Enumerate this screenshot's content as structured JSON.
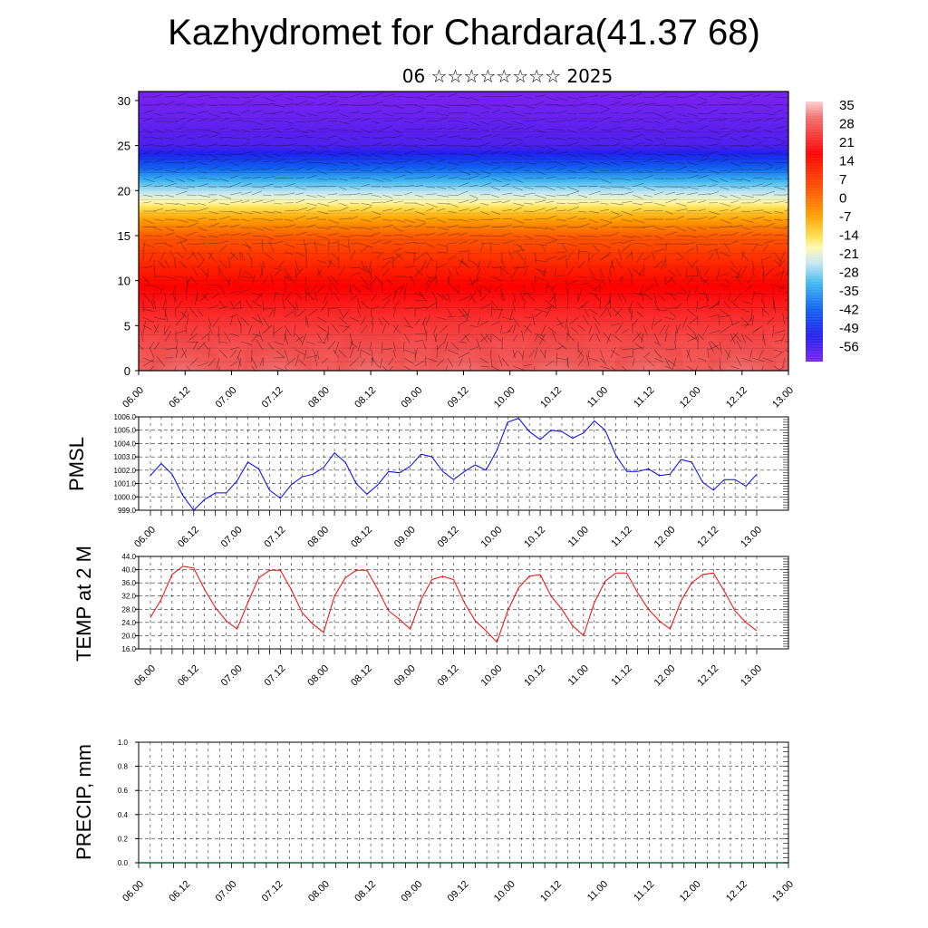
{
  "title": "Kazhydromet for Chardara(41.37 68)",
  "subtitle": "06 ☆☆☆☆☆☆☆☆ 2025",
  "time_ticks": [
    "06.00",
    "06.12",
    "07.00",
    "07.12",
    "08.00",
    "08.12",
    "09.00",
    "09.12",
    "10.00",
    "10.12",
    "11.00",
    "11.12",
    "12.00",
    "12.12",
    "13.00"
  ],
  "chart_data": [
    {
      "type": "heatmap",
      "name": "upper_air_temperature_wind",
      "x_ticks": [
        "06.00",
        "06.12",
        "07.00",
        "07.12",
        "08.00",
        "08.12",
        "09.00",
        "09.12",
        "10.00",
        "10.12",
        "11.00",
        "11.12",
        "12.00",
        "12.12",
        "13.00"
      ],
      "y_ticks": [
        0,
        5,
        10,
        15,
        20,
        25,
        30
      ],
      "ylim": [
        0,
        31
      ],
      "colorbar_labels": [
        35,
        28,
        21,
        14,
        7,
        0,
        -7,
        -14,
        -21,
        -28,
        -35,
        -42,
        -49,
        -56
      ],
      "colorbar_range": [
        -60,
        38
      ],
      "level_temperature_profile": [
        {
          "level": 0,
          "temp": 30
        },
        {
          "level": 3,
          "temp": 28
        },
        {
          "level": 6,
          "temp": 24
        },
        {
          "level": 9,
          "temp": 19
        },
        {
          "level": 12,
          "temp": 12
        },
        {
          "level": 15,
          "temp": 4
        },
        {
          "level": 17,
          "temp": -6
        },
        {
          "level": 19,
          "temp": -18
        },
        {
          "level": 21,
          "temp": -30
        },
        {
          "level": 23,
          "temp": -43
        },
        {
          "level": 25,
          "temp": -55
        },
        {
          "level": 28,
          "temp": -58
        },
        {
          "level": 31,
          "temp": -60
        }
      ],
      "wind_vectors": "yes"
    },
    {
      "type": "line",
      "ylabel": "PMSL",
      "ylim": [
        999.0,
        1006.0
      ],
      "y_ticks": [
        "999.0",
        "1000.0",
        "1001.0",
        "1002.0",
        "1003.0",
        "1004.0",
        "1005.0",
        "1006.0"
      ],
      "x_ticks": [
        "06.00",
        "06.12",
        "07.00",
        "07.12",
        "08.00",
        "08.12",
        "09.00",
        "09.12",
        "10.00",
        "10.12",
        "11.00",
        "11.12",
        "12.00",
        "12.12",
        "13.00"
      ],
      "series": [
        {
          "color": "#0000ff",
          "x": [
            0,
            3,
            6,
            9,
            12,
            15,
            18,
            21,
            24,
            27,
            30,
            33,
            36,
            39,
            42,
            45,
            48,
            51,
            54,
            57,
            60,
            63,
            66,
            69,
            72,
            75,
            78,
            81,
            84,
            87,
            90,
            93,
            96,
            99,
            102,
            105,
            108,
            111,
            114,
            117,
            120,
            123,
            126,
            129,
            132,
            135,
            138,
            141,
            144,
            147,
            150,
            153,
            156,
            159,
            162,
            165,
            168
          ],
          "values": [
            1001.6,
            1002.5,
            1001.7,
            1000.1,
            999.0,
            999.8,
            1000.3,
            1000.3,
            1001.2,
            1002.6,
            1002.1,
            1000.5,
            999.9,
            1000.9,
            1001.5,
            1001.7,
            1002.2,
            1003.3,
            1002.6,
            1001.0,
            1000.2,
            1000.9,
            1001.9,
            1001.8,
            1002.3,
            1003.2,
            1003.0,
            1001.9,
            1001.3,
            1001.9,
            1002.4,
            1002.0,
            1003.5,
            1005.6,
            1005.9,
            1004.9,
            1004.3,
            1005.0,
            1004.9,
            1004.4,
            1004.8,
            1005.7,
            1005.0,
            1003.1,
            1001.9,
            1001.9,
            1002.1,
            1001.6,
            1001.7,
            1002.8,
            1002.6,
            1001.1,
            1000.5,
            1001.3,
            1001.3,
            1000.8,
            1001.7
          ]
        }
      ]
    },
    {
      "type": "line",
      "ylabel": "TEMP at 2 M",
      "ylim": [
        16.0,
        44.0
      ],
      "y_ticks": [
        "16.0",
        "20.0",
        "24.0",
        "28.0",
        "32.0",
        "36.0",
        "40.0",
        "44.0"
      ],
      "x_ticks": [
        "06.00",
        "06.12",
        "07.00",
        "07.12",
        "08.00",
        "08.12",
        "09.00",
        "09.12",
        "10.00",
        "10.12",
        "11.00",
        "11.12",
        "12.00",
        "12.12",
        "13.00"
      ],
      "series": [
        {
          "color": "#ff0000",
          "x": [
            0,
            3,
            6,
            9,
            12,
            15,
            18,
            21,
            24,
            27,
            30,
            33,
            36,
            39,
            42,
            45,
            48,
            51,
            54,
            57,
            60,
            63,
            66,
            69,
            72,
            75,
            78,
            81,
            84,
            87,
            90,
            93,
            96,
            99,
            102,
            105,
            108,
            111,
            114,
            117,
            120,
            123,
            126,
            129,
            132,
            135,
            138,
            141,
            144,
            147,
            150,
            153,
            156,
            159,
            162,
            165,
            168
          ],
          "values": [
            25.5,
            31.0,
            38.5,
            41.0,
            40.5,
            34.0,
            28.5,
            24.5,
            22.0,
            30.0,
            37.5,
            39.8,
            39.8,
            34.0,
            27.0,
            23.5,
            21.0,
            32.0,
            37.5,
            39.8,
            39.8,
            34.0,
            27.5,
            25.0,
            22.0,
            31.0,
            37.0,
            38.0,
            37.0,
            30.0,
            24.5,
            21.5,
            18.0,
            27.5,
            34.5,
            38.0,
            38.5,
            32.0,
            28.0,
            23.0,
            20.0,
            30.0,
            36.5,
            39.0,
            39.0,
            33.0,
            28.0,
            24.5,
            22.0,
            30.5,
            36.0,
            38.5,
            39.0,
            33.5,
            27.5,
            24.0,
            21.5
          ]
        }
      ]
    },
    {
      "type": "bar",
      "ylabel": "PRECIP, mm",
      "ylim": [
        0.0,
        1.0
      ],
      "y_ticks": [
        "0.0",
        "0.2",
        "0.4",
        "0.6",
        "0.8",
        "1.0"
      ],
      "x_ticks": [
        "06.00",
        "06.12",
        "07.00",
        "07.12",
        "08.00",
        "08.12",
        "09.00",
        "09.12",
        "10.00",
        "10.12",
        "11.00",
        "11.12",
        "12.00",
        "12.12",
        "13.00"
      ],
      "values": [
        0,
        0,
        0,
        0,
        0,
        0,
        0,
        0,
        0,
        0,
        0,
        0,
        0,
        0,
        0,
        0,
        0,
        0,
        0,
        0,
        0,
        0,
        0,
        0,
        0,
        0,
        0,
        0,
        0,
        0,
        0,
        0,
        0,
        0,
        0,
        0,
        0,
        0,
        0,
        0,
        0,
        0,
        0,
        0,
        0,
        0,
        0,
        0,
        0,
        0,
        0,
        0,
        0,
        0,
        0,
        0,
        0
      ]
    }
  ]
}
